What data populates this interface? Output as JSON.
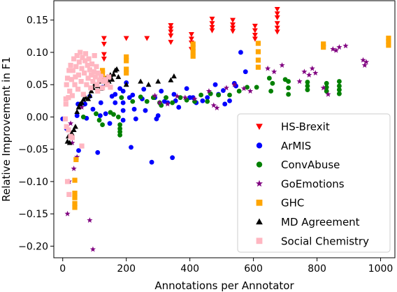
{
  "chart_data": {
    "type": "scatter",
    "xlabel": "Annotations per Annotator",
    "ylabel": "Relative Improvement in F1",
    "xlim": [
      -28,
      1045
    ],
    "ylim": [
      -0.218,
      0.18
    ],
    "xticks": [
      0,
      200,
      400,
      600,
      800,
      1000
    ],
    "yticks": [
      -0.2,
      -0.15,
      -0.1,
      -0.05,
      0.0,
      0.05,
      0.1,
      0.15
    ],
    "xtick_labels": [
      "0",
      "200",
      "400",
      "600",
      "800",
      "1000"
    ],
    "ytick_labels": [
      "−0.20",
      "−0.15",
      "−0.10",
      "−0.05",
      "0.00",
      "0.05",
      "0.10",
      "0.15"
    ],
    "grid": false,
    "legend_position": "lower-right",
    "series": [
      {
        "name": "HS-Brexit",
        "marker": "triangle-down",
        "color": "#ff0000",
        "points": [
          [
            130,
            0.122
          ],
          [
            130,
            0.113
          ],
          [
            130,
            0.097
          ],
          [
            130,
            0.09
          ],
          [
            200,
            0.122
          ],
          [
            265,
            0.122
          ],
          [
            340,
            0.142
          ],
          [
            340,
            0.137
          ],
          [
            340,
            0.132
          ],
          [
            340,
            0.126
          ],
          [
            340,
            0.116
          ],
          [
            405,
            0.128
          ],
          [
            405,
            0.121
          ],
          [
            405,
            0.115
          ],
          [
            405,
            0.105
          ],
          [
            470,
            0.152
          ],
          [
            470,
            0.145
          ],
          [
            470,
            0.139
          ],
          [
            470,
            0.134
          ],
          [
            535,
            0.15
          ],
          [
            535,
            0.143
          ],
          [
            535,
            0.138
          ],
          [
            535,
            0.133
          ],
          [
            605,
            0.141
          ],
          [
            605,
            0.134
          ],
          [
            605,
            0.127
          ],
          [
            605,
            0.121
          ],
          [
            675,
            0.167
          ],
          [
            675,
            0.16
          ],
          [
            675,
            0.154
          ],
          [
            675,
            0.145
          ],
          [
            675,
            0.138
          ],
          [
            675,
            0.132
          ]
        ]
      },
      {
        "name": "ArMIS",
        "marker": "circle",
        "color": "#0000ff",
        "points": [
          [
            0,
            -0.003
          ],
          [
            12,
            -0.018
          ],
          [
            45,
            0.002
          ],
          [
            48,
            0.02
          ],
          [
            50,
            -0.052
          ],
          [
            70,
            0.02
          ],
          [
            75,
            -0.002
          ],
          [
            85,
            0.032
          ],
          [
            95,
            0.012
          ],
          [
            110,
            -0.055
          ],
          [
            118,
            0.002
          ],
          [
            120,
            0.022
          ],
          [
            125,
            0.046
          ],
          [
            135,
            0.005
          ],
          [
            148,
            -0.01
          ],
          [
            155,
            0.032
          ],
          [
            165,
            0.035
          ],
          [
            165,
            0.022
          ],
          [
            180,
            0.044
          ],
          [
            190,
            0.04
          ],
          [
            190,
            0.022
          ],
          [
            190,
            0.01
          ],
          [
            190,
            -0.005
          ],
          [
            200,
            0.053
          ],
          [
            210,
            0.03
          ],
          [
            215,
            -0.047
          ],
          [
            220,
            0.034
          ],
          [
            225,
            0.012
          ],
          [
            230,
            -0.003
          ],
          [
            250,
            0.028
          ],
          [
            255,
            0.043
          ],
          [
            260,
            0.01
          ],
          [
            280,
            -0.07
          ],
          [
            290,
            0.03
          ],
          [
            295,
            -0.003
          ],
          [
            300,
            0.002
          ],
          [
            310,
            0.04
          ],
          [
            320,
            0.024
          ],
          [
            330,
            0.022
          ],
          [
            345,
            -0.063
          ],
          [
            350,
            0.035
          ],
          [
            355,
            0.025
          ],
          [
            365,
            0.015
          ],
          [
            390,
            0.044
          ],
          [
            400,
            0.03
          ],
          [
            410,
            0.03
          ],
          [
            420,
            0.022
          ],
          [
            440,
            0.025
          ],
          [
            455,
            0.03
          ],
          [
            480,
            0.05
          ],
          [
            490,
            0.035
          ],
          [
            505,
            0.041
          ],
          [
            510,
            0.02
          ],
          [
            525,
            0.025
          ],
          [
            540,
            0.052
          ],
          [
            545,
            0.048
          ],
          [
            560,
            0.1
          ],
          [
            575,
            0.07
          ]
        ]
      },
      {
        "name": "ConvAbuse",
        "marker": "circle",
        "color": "#008000",
        "points": [
          [
            65,
            0.0
          ],
          [
            105,
            0.005
          ],
          [
            115,
            -0.005
          ],
          [
            125,
            -0.012
          ],
          [
            150,
            0.007
          ],
          [
            160,
            0.004
          ],
          [
            175,
            0.0
          ],
          [
            180,
            -0.012
          ],
          [
            180,
            -0.018
          ],
          [
            180,
            -0.023
          ],
          [
            180,
            -0.028
          ],
          [
            185,
            0.03
          ],
          [
            220,
            0.024
          ],
          [
            245,
            0.031
          ],
          [
            265,
            0.024
          ],
          [
            285,
            0.03
          ],
          [
            305,
            0.022
          ],
          [
            310,
            0.018
          ],
          [
            325,
            0.03
          ],
          [
            345,
            0.022
          ],
          [
            370,
            0.03
          ],
          [
            390,
            0.026
          ],
          [
            415,
            0.024
          ],
          [
            435,
            0.034
          ],
          [
            455,
            0.024
          ],
          [
            465,
            0.036
          ],
          [
            490,
            0.034
          ],
          [
            525,
            0.034
          ],
          [
            555,
            0.04
          ],
          [
            580,
            0.046
          ],
          [
            610,
            0.046
          ],
          [
            650,
            0.06
          ],
          [
            660,
            0.052
          ],
          [
            655,
            0.04
          ],
          [
            700,
            0.058
          ],
          [
            710,
            0.055
          ],
          [
            710,
            0.045
          ],
          [
            710,
            0.035
          ],
          [
            770,
            0.054
          ],
          [
            770,
            0.048
          ],
          [
            770,
            0.042
          ],
          [
            830,
            0.052
          ],
          [
            830,
            0.046
          ],
          [
            830,
            0.04
          ],
          [
            870,
            0.055
          ],
          [
            870,
            0.048
          ],
          [
            870,
            0.042
          ],
          [
            870,
            0.036
          ]
        ]
      },
      {
        "name": "GoEmotions",
        "marker": "star",
        "color": "#800080",
        "points": [
          [
            25,
            -0.01
          ],
          [
            30,
            -0.04
          ],
          [
            45,
            -0.062
          ],
          [
            35,
            -0.08
          ],
          [
            20,
            -0.1
          ],
          [
            15,
            -0.15
          ],
          [
            85,
            -0.16
          ],
          [
            95,
            -0.205
          ],
          [
            60,
            0.015
          ],
          [
            290,
            0.033
          ],
          [
            305,
            0.022
          ],
          [
            330,
            0.02
          ],
          [
            360,
            0.032
          ],
          [
            385,
            0.03
          ],
          [
            415,
            0.028
          ],
          [
            460,
            0.04
          ],
          [
            475,
            0.018
          ],
          [
            485,
            0.014
          ],
          [
            515,
            0.045
          ],
          [
            540,
            0.05
          ],
          [
            570,
            0.044
          ],
          [
            590,
            0.04
          ],
          [
            645,
            0.075
          ],
          [
            665,
            0.07
          ],
          [
            690,
            0.08
          ],
          [
            745,
            0.055
          ],
          [
            760,
            0.07
          ],
          [
            775,
            0.065
          ],
          [
            785,
            0.075
          ],
          [
            795,
            0.068
          ],
          [
            820,
            0.045
          ],
          [
            835,
            0.035
          ],
          [
            850,
            0.105
          ],
          [
            860,
            0.103
          ],
          [
            870,
            0.108
          ],
          [
            890,
            0.11
          ],
          [
            945,
            0.088
          ],
          [
            950,
            0.08
          ],
          [
            955,
            0.085
          ]
        ]
      },
      {
        "name": "GHC",
        "marker": "square",
        "color": "#ffa500",
        "points": [
          [
            38,
            -0.098
          ],
          [
            38,
            -0.118
          ],
          [
            38,
            -0.125
          ],
          [
            38,
            -0.134
          ],
          [
            38,
            -0.14
          ],
          [
            42,
            -0.066
          ],
          [
            125,
            0.068
          ],
          [
            125,
            0.072
          ],
          [
            130,
            0.06
          ],
          [
            200,
            0.093
          ],
          [
            200,
            0.087
          ],
          [
            200,
            0.074
          ],
          [
            200,
            0.068
          ],
          [
            410,
            0.113
          ],
          [
            410,
            0.107
          ],
          [
            410,
            0.101
          ],
          [
            410,
            0.094
          ],
          [
            615,
            0.114
          ],
          [
            615,
            0.101
          ],
          [
            615,
            0.088
          ],
          [
            615,
            0.077
          ],
          [
            820,
            0.113
          ],
          [
            820,
            0.108
          ],
          [
            1025,
            0.122
          ],
          [
            1025,
            0.117
          ],
          [
            1025,
            0.111
          ]
        ]
      },
      {
        "name": "MD Agreement",
        "marker": "triangle-up",
        "color": "#000000",
        "points": [
          [
            15,
            -0.038
          ],
          [
            18,
            -0.03
          ],
          [
            22,
            -0.04
          ],
          [
            28,
            -0.025
          ],
          [
            35,
            -0.02
          ],
          [
            40,
            -0.015
          ],
          [
            45,
            0.008
          ],
          [
            50,
            0.015
          ],
          [
            55,
            0.02
          ],
          [
            60,
            0.022
          ],
          [
            65,
            0.027
          ],
          [
            72,
            0.03
          ],
          [
            80,
            0.028
          ],
          [
            85,
            0.033
          ],
          [
            90,
            0.04
          ],
          [
            95,
            0.045
          ],
          [
            100,
            0.05
          ],
          [
            110,
            0.048
          ],
          [
            115,
            0.055
          ],
          [
            120,
            0.044
          ],
          [
            130,
            0.058
          ],
          [
            135,
            0.05
          ],
          [
            140,
            0.062
          ],
          [
            145,
            0.055
          ],
          [
            150,
            0.065
          ],
          [
            155,
            0.058
          ],
          [
            160,
            0.066
          ],
          [
            165,
            0.072
          ],
          [
            170,
            0.074
          ],
          [
            175,
            0.062
          ],
          [
            200,
            0.05
          ],
          [
            245,
            0.055
          ],
          [
            270,
            0.05
          ],
          [
            300,
            0.055
          ],
          [
            340,
            0.057
          ],
          [
            350,
            0.063
          ]
        ]
      },
      {
        "name": "Social Chemistry",
        "marker": "square",
        "color": "#ffb6c1",
        "points": [
          [
            8,
            -0.003
          ],
          [
            10,
            0.02
          ],
          [
            12,
            0.05
          ],
          [
            15,
            0.06
          ],
          [
            18,
            0.03
          ],
          [
            20,
            0.072
          ],
          [
            22,
            0.04
          ],
          [
            25,
            0.08
          ],
          [
            28,
            0.058
          ],
          [
            30,
            0.033
          ],
          [
            32,
            0.072
          ],
          [
            35,
            0.09
          ],
          [
            38,
            0.05
          ],
          [
            40,
            0.062
          ],
          [
            42,
            0.078
          ],
          [
            45,
            0.095
          ],
          [
            48,
            0.043
          ],
          [
            50,
            0.065
          ],
          [
            52,
            0.085
          ],
          [
            55,
            0.1
          ],
          [
            58,
            0.055
          ],
          [
            60,
            0.075
          ],
          [
            62,
            0.092
          ],
          [
            65,
            0.035
          ],
          [
            68,
            0.068
          ],
          [
            70,
            0.087
          ],
          [
            72,
            0.098
          ],
          [
            75,
            0.05
          ],
          [
            78,
            0.08
          ],
          [
            80,
            0.06
          ],
          [
            82,
            0.09
          ],
          [
            85,
            0.073
          ],
          [
            88,
            0.045
          ],
          [
            90,
            0.065
          ],
          [
            92,
            0.082
          ],
          [
            95,
            0.055
          ],
          [
            98,
            0.07
          ],
          [
            100,
            0.095
          ],
          [
            103,
            0.062
          ],
          [
            106,
            0.078
          ],
          [
            108,
            0.05
          ],
          [
            110,
            0.04
          ],
          [
            112,
            0.068
          ],
          [
            115,
            0.057
          ],
          [
            120,
            0.063
          ],
          [
            125,
            0.045
          ],
          [
            128,
            0.055
          ],
          [
            135,
            0.058
          ],
          [
            140,
            0.05
          ],
          [
            145,
            0.062
          ],
          [
            150,
            0.046
          ],
          [
            12,
            -0.015
          ],
          [
            18,
            -0.02
          ],
          [
            25,
            -0.03
          ],
          [
            30,
            -0.032
          ],
          [
            15,
            -0.1
          ],
          [
            20,
            -0.12
          ],
          [
            60,
            -0.045
          ],
          [
            10,
            0.028
          ]
        ]
      }
    ]
  }
}
